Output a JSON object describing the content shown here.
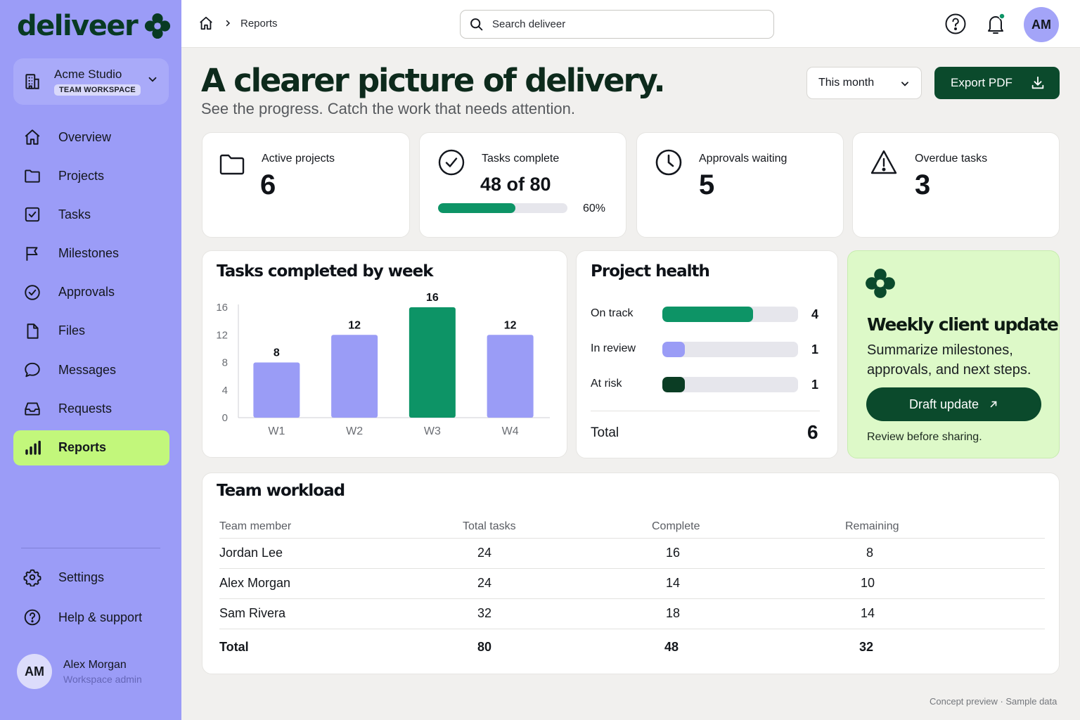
{
  "brand": {
    "name": "deliveer"
  },
  "workspace": {
    "name": "Acme Studio",
    "badge": "TEAM WORKSPACE"
  },
  "sidebar": {
    "items": [
      {
        "label": "Overview",
        "icon": "home-icon"
      },
      {
        "label": "Projects",
        "icon": "folder-icon"
      },
      {
        "label": "Tasks",
        "icon": "checkbox-icon"
      },
      {
        "label": "Milestones",
        "icon": "flag-icon"
      },
      {
        "label": "Approvals",
        "icon": "check-circle-icon"
      },
      {
        "label": "Files",
        "icon": "file-icon"
      },
      {
        "label": "Messages",
        "icon": "chat-bubble-icon"
      },
      {
        "label": "Requests",
        "icon": "inbox-icon"
      },
      {
        "label": "Reports",
        "icon": "bar-chart-icon",
        "active": true
      }
    ],
    "bottom_items": [
      {
        "label": "Settings",
        "icon": "gear-icon"
      },
      {
        "label": "Help & support",
        "icon": "help-circle-icon"
      }
    ],
    "user": {
      "initials": "AM",
      "name": "Alex Morgan",
      "role": "Workspace admin"
    }
  },
  "topbar": {
    "breadcrumb": "Reports",
    "search_placeholder": "Search deliveer",
    "user_initials": "AM"
  },
  "header": {
    "title": "A clearer picture of delivery.",
    "subtitle": "See the progress. Catch the work that needs attention.",
    "period": "This month",
    "export_label": "Export PDF"
  },
  "kpis": {
    "active_projects": {
      "label": "Active projects",
      "value": "6"
    },
    "tasks_complete": {
      "label": "Tasks complete",
      "value": "48 of 80",
      "percent_label": "60%",
      "fraction": 0.6
    },
    "approvals_waiting": {
      "label": "Approvals waiting",
      "value": "5"
    },
    "overdue_tasks": {
      "label": "Overdue tasks",
      "value": "3"
    }
  },
  "chart_data": {
    "type": "bar",
    "title": "Tasks completed by week",
    "categories": [
      "W1",
      "W2",
      "W3",
      "W4"
    ],
    "values": [
      8,
      12,
      16,
      12
    ],
    "highlight_index": 2,
    "yticks": [
      0,
      4,
      8,
      12,
      16
    ],
    "ylim": [
      0,
      16
    ],
    "grid": false,
    "colors": {
      "default": "#9a9cf6",
      "highlight": "#0d9466"
    }
  },
  "health": {
    "title": "Project health",
    "rows": [
      {
        "label": "On track",
        "count": 4,
        "color": "#0d9466"
      },
      {
        "label": "In review",
        "count": 1,
        "color": "#9a9cf6"
      },
      {
        "label": "At risk",
        "count": 1,
        "color": "#0b3d24"
      }
    ],
    "total_label": "Total",
    "total": 6
  },
  "promo": {
    "title": "Weekly client update",
    "text": "Summarize milestones, approvals, and next steps.",
    "button": "Draft update",
    "note": "Review before sharing."
  },
  "workload": {
    "title": "Team workload",
    "columns": [
      "Team member",
      "Total tasks",
      "Complete",
      "Remaining"
    ],
    "rows": [
      [
        "Jordan Lee",
        "24",
        "16",
        "8"
      ],
      [
        "Alex Morgan",
        "24",
        "14",
        "10"
      ],
      [
        "Sam Rivera",
        "32",
        "18",
        "14"
      ]
    ],
    "total": [
      "Total",
      "80",
      "48",
      "32"
    ]
  },
  "footer": {
    "note": "Concept preview · Sample data"
  },
  "colors": {
    "sidebar": "#9b9cf7",
    "accent_green": "#0d9466",
    "dark_green": "#0b4a2c",
    "lime": "#c2f77b",
    "promo_bg": "#ddf9c8"
  }
}
